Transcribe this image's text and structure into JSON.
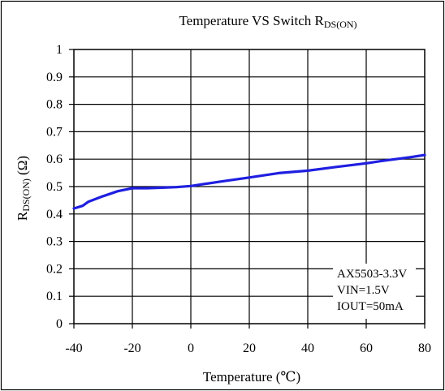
{
  "chart_data": {
    "type": "line",
    "title": {
      "prefix": "Temperature VS Switch R",
      "subscript": "DS(ON)"
    },
    "xlabel": "Temperature (℃)",
    "ylabel": {
      "main": "R",
      "subscript": "DS(ON)",
      "suffix": " (Ω)"
    },
    "xlim": [
      -40,
      80
    ],
    "ylim": [
      0,
      1
    ],
    "x_ticks": [
      -40,
      -20,
      0,
      20,
      40,
      60,
      80
    ],
    "x_tick_labels": [
      "-40",
      "-20",
      "0",
      "20",
      "40",
      "60",
      "80"
    ],
    "y_ticks": [
      0,
      0.1,
      0.2,
      0.3,
      0.4,
      0.5,
      0.6,
      0.7,
      0.8,
      0.9,
      1
    ],
    "y_tick_labels": [
      "0",
      "0.1",
      "0.2",
      "0.3",
      "0.4",
      "0.5",
      "0.6",
      "0.7",
      "0.8",
      "0.9",
      "1"
    ],
    "grid": true,
    "annotations": [
      "AX5503-3.3V",
      "VIN=1.5V",
      "IOUT=50mA"
    ],
    "series": [
      {
        "color": "#1f1fe0",
        "x": [
          -40,
          -37,
          -35,
          -30,
          -25,
          -20,
          -15,
          -10,
          -5,
          0,
          5,
          10,
          20,
          30,
          40,
          50,
          60,
          65,
          70,
          75,
          80
        ],
        "y": [
          0.42,
          0.43,
          0.445,
          0.465,
          0.483,
          0.494,
          0.494,
          0.496,
          0.498,
          0.502,
          0.51,
          0.518,
          0.533,
          0.549,
          0.558,
          0.572,
          0.585,
          0.593,
          0.6,
          0.607,
          0.615
        ]
      }
    ]
  }
}
